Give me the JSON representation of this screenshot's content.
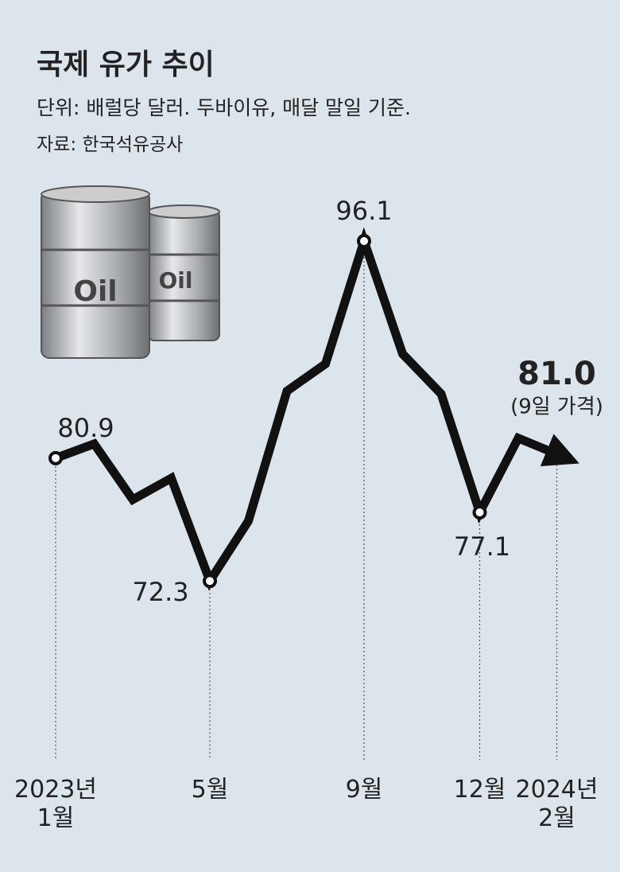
{
  "chart_data": {
    "type": "line",
    "title": "국제 유가 추이",
    "subtitle": "단위: 배럴당 달러. 두바이유, 매달 말일 기준.",
    "source": "자료: 한국석유공사",
    "barrel_label": "Oil",
    "categories": [
      "2023년\n1월",
      null,
      null,
      null,
      "5월",
      null,
      null,
      null,
      "9월",
      null,
      null,
      "12월",
      null,
      "2024년\n2월"
    ],
    "values": [
      80.9,
      81.9,
      78.0,
      79.5,
      72.3,
      76.5,
      85.6,
      87.5,
      96.1,
      88.2,
      85.4,
      77.1,
      82.3,
      81.0
    ],
    "value_labels": [
      "80.9",
      null,
      null,
      null,
      "72.3",
      null,
      null,
      null,
      "96.1",
      null,
      null,
      "77.1",
      null,
      "81.0"
    ],
    "last_note": "(9일 가격)",
    "color": "#111111",
    "ylim": [
      60,
      100
    ]
  }
}
